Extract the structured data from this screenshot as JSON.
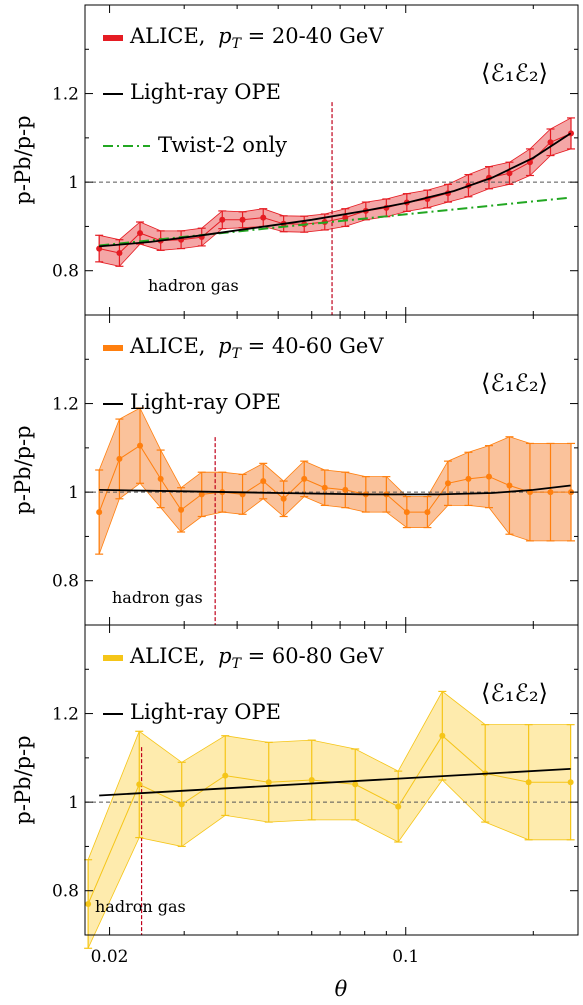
{
  "figure": {
    "xlabel": "θ",
    "ylabel": "p-Pb/p-p",
    "xticks": [
      {
        "value": 0.02,
        "label": "0.02"
      },
      {
        "value": 0.1,
        "label": "0.1"
      }
    ],
    "yticks": [
      {
        "value": 0.8,
        "label": "0.8"
      },
      {
        "value": 1.0,
        "label": "1"
      },
      {
        "value": 1.2,
        "label": "1.2"
      }
    ],
    "correlator_label": "⟨ℰ₁ℰ₂⟩",
    "annotation": "hadron gas",
    "colors": {
      "ope": "#000000",
      "twist2": "#22a722",
      "reference": "#555555",
      "hadron_line": "#c0001a"
    }
  },
  "chart_data": [
    {
      "type": "line",
      "xscale": "log",
      "xlim": [
        0.0175,
        0.255
      ],
      "ylim": [
        0.7,
        1.4
      ],
      "legend": {
        "alice_prefix": "ALICE,",
        "pt_symbol": "p",
        "pt_subscript": "T",
        "pt_range": " = 20-40 GeV",
        "ope": "Light-ray OPE",
        "twist2": "Twist-2 only"
      },
      "color": "#e51c23",
      "band_color": "#f08080",
      "hadron_gas_theta": 0.067,
      "reference_y": 1.0,
      "x": [
        0.0189,
        0.0211,
        0.0236,
        0.0264,
        0.0295,
        0.033,
        0.0369,
        0.0412,
        0.0461,
        0.0515,
        0.0576,
        0.0644,
        0.072,
        0.0805,
        0.09,
        0.1006,
        0.1125,
        0.1258,
        0.1406,
        0.1572,
        0.1757,
        0.1964,
        0.2196,
        0.2455
      ],
      "y": [
        0.85,
        0.84,
        0.885,
        0.868,
        0.87,
        0.876,
        0.915,
        0.915,
        0.92,
        0.906,
        0.905,
        0.91,
        0.92,
        0.935,
        0.942,
        0.954,
        0.962,
        0.975,
        0.992,
        1.01,
        1.02,
        1.045,
        1.09,
        1.11
      ],
      "err": [
        0.03,
        0.03,
        0.025,
        0.022,
        0.02,
        0.02,
        0.02,
        0.018,
        0.02,
        0.018,
        0.018,
        0.018,
        0.02,
        0.02,
        0.02,
        0.02,
        0.02,
        0.02,
        0.025,
        0.025,
        0.025,
        0.03,
        0.03,
        0.035
      ],
      "ope_curve": {
        "x": [
          0.0189,
          0.025,
          0.033,
          0.045,
          0.06,
          0.08,
          0.1,
          0.13,
          0.16,
          0.2,
          0.245
        ],
        "y": [
          0.855,
          0.865,
          0.88,
          0.898,
          0.915,
          0.935,
          0.953,
          0.98,
          1.01,
          1.055,
          1.11
        ]
      },
      "twist2_curve": {
        "x": [
          0.0189,
          0.245
        ],
        "y": [
          0.857,
          0.965
        ]
      }
    },
    {
      "type": "line",
      "xscale": "log",
      "xlim": [
        0.0175,
        0.255
      ],
      "ylim": [
        0.7,
        1.4
      ],
      "legend": {
        "alice_prefix": "ALICE,",
        "pt_symbol": "p",
        "pt_subscript": "T",
        "pt_range": " = 40-60 GeV",
        "ope": "Light-ray OPE"
      },
      "color": "#ff7f0e",
      "band_color": "#f8a870",
      "hadron_gas_theta": 0.0355,
      "reference_y": 1.0,
      "x": [
        0.0189,
        0.0211,
        0.0236,
        0.0264,
        0.0295,
        0.033,
        0.0369,
        0.0412,
        0.0461,
        0.0515,
        0.0576,
        0.0644,
        0.072,
        0.0805,
        0.09,
        0.1006,
        0.1125,
        0.1258,
        0.1406,
        0.1572,
        0.1757,
        0.1964,
        0.2196,
        0.2455
      ],
      "y": [
        0.955,
        1.075,
        1.105,
        1.03,
        0.96,
        0.995,
        1.0,
        0.995,
        1.025,
        0.985,
        1.03,
        1.01,
        1.005,
        0.995,
        0.995,
        0.955,
        0.955,
        1.02,
        1.03,
        1.035,
        1.015,
        1.0,
        1.0,
        1.0
      ],
      "err": [
        0.095,
        0.09,
        0.085,
        0.065,
        0.05,
        0.05,
        0.045,
        0.045,
        0.04,
        0.04,
        0.04,
        0.04,
        0.04,
        0.04,
        0.04,
        0.035,
        0.035,
        0.05,
        0.06,
        0.07,
        0.11,
        0.11,
        0.11,
        0.11
      ],
      "ope_curve": {
        "x": [
          0.0189,
          0.03,
          0.05,
          0.08,
          0.12,
          0.16,
          0.2,
          0.245
        ],
        "y": [
          1.005,
          1.002,
          0.998,
          0.995,
          0.995,
          0.998,
          1.005,
          1.015
        ]
      }
    },
    {
      "type": "line",
      "xscale": "log",
      "xlim": [
        0.0175,
        0.255
      ],
      "ylim": [
        0.7,
        1.4
      ],
      "legend": {
        "alice_prefix": "ALICE,",
        "pt_symbol": "p",
        "pt_subscript": "T",
        "pt_range": " = 60-80 GeV",
        "ope": "Light-ray OPE"
      },
      "color": "#f5c518",
      "band_color": "#fde28a",
      "hadron_gas_theta": 0.0238,
      "reference_y": 1.0,
      "x": [
        0.0178,
        0.0235,
        0.0296,
        0.0375,
        0.0475,
        0.06,
        0.076,
        0.096,
        0.122,
        0.154,
        0.195,
        0.245
      ],
      "y": [
        0.77,
        1.04,
        0.995,
        1.06,
        1.045,
        1.05,
        1.04,
        0.99,
        1.15,
        1.065,
        1.045,
        1.045
      ],
      "err": [
        0.1,
        0.12,
        0.095,
        0.09,
        0.09,
        0.09,
        0.08,
        0.08,
        0.1,
        0.11,
        0.13,
        0.13
      ],
      "ope_curve": {
        "x": [
          0.0189,
          0.245
        ],
        "y": [
          1.015,
          1.075
        ]
      }
    }
  ]
}
